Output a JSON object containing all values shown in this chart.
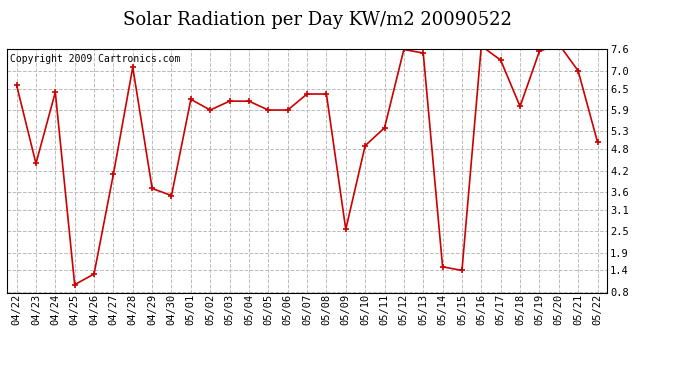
{
  "title": "Solar Radiation per Day KW/m2 20090522",
  "copyright_text": "Copyright 2009 Cartronics.com",
  "dates": [
    "04/22",
    "04/23",
    "04/24",
    "04/25",
    "04/26",
    "04/27",
    "04/28",
    "04/29",
    "04/30",
    "05/01",
    "05/02",
    "05/03",
    "05/04",
    "05/05",
    "05/06",
    "05/07",
    "05/08",
    "05/09",
    "05/10",
    "05/11",
    "05/12",
    "05/13",
    "05/14",
    "05/15",
    "05/16",
    "05/17",
    "05/18",
    "05/19",
    "05/20",
    "05/21",
    "05/22"
  ],
  "values": [
    6.6,
    4.4,
    6.4,
    1.0,
    1.3,
    4.1,
    7.1,
    3.7,
    3.5,
    6.2,
    5.9,
    6.15,
    6.15,
    5.9,
    5.9,
    6.35,
    6.35,
    2.55,
    4.9,
    5.4,
    7.6,
    7.5,
    1.5,
    1.4,
    7.7,
    7.3,
    6.0,
    7.55,
    7.75,
    7.0,
    5.0
  ],
  "line_color": "#cc0000",
  "marker_color": "#cc0000",
  "bg_color": "#ffffff",
  "plot_bg_color": "#ffffff",
  "grid_color": "#bbbbbb",
  "title_fontsize": 13,
  "copyright_fontsize": 7,
  "tick_fontsize": 7.5,
  "yticks": [
    0.8,
    1.4,
    1.9,
    2.5,
    3.1,
    3.6,
    4.2,
    4.8,
    5.3,
    5.9,
    6.5,
    7.0,
    7.6
  ],
  "ymin": 0.8,
  "ymax": 7.6
}
